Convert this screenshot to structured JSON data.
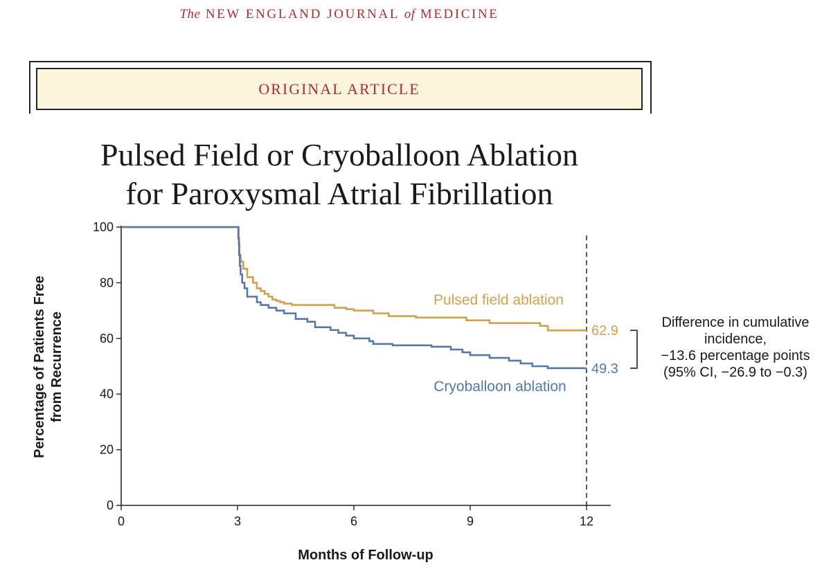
{
  "header": {
    "journal_the": "The",
    "journal_name_1": "NEW ENGLAND JOURNAL",
    "journal_of": "of",
    "journal_name_2": "MEDICINE",
    "banner": "ORIGINAL ARTICLE"
  },
  "article": {
    "title_line1": "Pulsed Field or Cryoballoon Ablation",
    "title_line2": "for Paroxysmal Atrial Fibrillation"
  },
  "chart_data": {
    "type": "line",
    "step": true,
    "xlabel": "Months of Follow-up",
    "ylabel_line1": "Percentage of Patients Free",
    "ylabel_line2": "from Recurrence",
    "xlim": [
      0,
      12
    ],
    "ylim": [
      0,
      100
    ],
    "x_ticks": [
      0,
      3,
      6,
      9,
      12
    ],
    "y_ticks": [
      0,
      20,
      40,
      60,
      80,
      100
    ],
    "reference_line_x": 12,
    "series": [
      {
        "name": "Pulsed field ablation",
        "color": "#d3a04e",
        "end_label": "62.9",
        "x": [
          0,
          3.0,
          3.03,
          3.05,
          3.08,
          3.1,
          3.15,
          3.25,
          3.4,
          3.5,
          3.6,
          3.7,
          3.8,
          3.9,
          4.0,
          4.1,
          4.2,
          4.4,
          5.5,
          5.8,
          6.0,
          6.5,
          6.9,
          7.6,
          8.9,
          9.5,
          10.8,
          11.0,
          12.0
        ],
        "y": [
          100,
          100,
          94,
          90,
          88,
          87.5,
          85,
          82,
          80,
          78,
          77,
          76,
          75,
          74,
          73.5,
          73,
          72.5,
          72,
          71,
          70.5,
          70,
          69,
          68,
          67.5,
          66.5,
          65.5,
          64.5,
          62.9,
          62.9
        ]
      },
      {
        "name": "Cryoballoon ablation",
        "color": "#5578ab",
        "end_label": "49.3",
        "x": [
          0,
          3.0,
          3.02,
          3.04,
          3.06,
          3.08,
          3.12,
          3.18,
          3.25,
          3.5,
          3.6,
          3.8,
          4.0,
          4.2,
          4.5,
          4.8,
          5.0,
          5.4,
          5.6,
          5.8,
          6.0,
          6.4,
          6.5,
          7.0,
          8.0,
          8.5,
          8.8,
          9.0,
          9.5,
          10.0,
          10.3,
          10.6,
          11.0,
          12.0
        ],
        "y": [
          100,
          100,
          96,
          90,
          86,
          83,
          80,
          78,
          75,
          73,
          72,
          71,
          70,
          69,
          67,
          66,
          64,
          63,
          62,
          61,
          60,
          59,
          58,
          57.5,
          57,
          56,
          55,
          54,
          53,
          52,
          51,
          50,
          49.3,
          49.3
        ]
      }
    ],
    "annotation": {
      "line1": "Difference in cumulative",
      "line2": "incidence,",
      "line3": "−13.6 percentage points",
      "line4": "(95% CI, −26.9 to −0.3)"
    }
  }
}
